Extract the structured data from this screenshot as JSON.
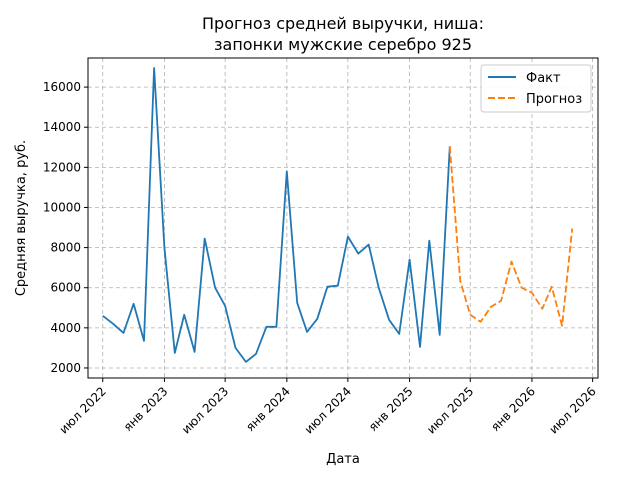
{
  "chart_data": {
    "type": "line",
    "title": "Прогноз средней выручки, ниша:\nзапонки мужские серебро 925",
    "title_lines": [
      "Прогноз средней выручки, ниша:",
      "запонки мужские серебро 925"
    ],
    "xlabel": "Дата",
    "ylabel": "Средняя выручка, руб.",
    "xlim": [
      "2022-05-18",
      "2026-07-17"
    ],
    "ylim": [
      1500,
      17450
    ],
    "grid": true,
    "legend": "top-right",
    "x_ticks": [
      {
        "value": "2022-07-01",
        "label": "июл 2022"
      },
      {
        "value": "2023-01-01",
        "label": "янв 2023"
      },
      {
        "value": "2023-07-01",
        "label": "июл 2023"
      },
      {
        "value": "2024-01-01",
        "label": "янв 2024"
      },
      {
        "value": "2024-07-01",
        "label": "июл 2024"
      },
      {
        "value": "2025-01-01",
        "label": "янв 2025"
      },
      {
        "value": "2025-07-01",
        "label": "июл 2025"
      },
      {
        "value": "2026-01-01",
        "label": "янв 2026"
      },
      {
        "value": "2026-07-01",
        "label": "июл 2026"
      }
    ],
    "y_ticks": [
      {
        "value": 2000,
        "label": "2000"
      },
      {
        "value": 4000,
        "label": "4000"
      },
      {
        "value": 6000,
        "label": "6000"
      },
      {
        "value": 8000,
        "label": "8000"
      },
      {
        "value": 10000,
        "label": "10000"
      },
      {
        "value": 12000,
        "label": "12000"
      },
      {
        "value": 14000,
        "label": "14000"
      },
      {
        "value": 16000,
        "label": "16000"
      }
    ],
    "series": [
      {
        "name": "Факт",
        "color": "#1f77b4",
        "style": "solid",
        "points": [
          {
            "x": "2022-07-01",
            "y": 4600
          },
          {
            "x": "2022-08-01",
            "y": 4200
          },
          {
            "x": "2022-09-01",
            "y": 3750
          },
          {
            "x": "2022-10-01",
            "y": 5200
          },
          {
            "x": "2022-11-01",
            "y": 3350
          },
          {
            "x": "2022-12-01",
            "y": 16950
          },
          {
            "x": "2023-01-01",
            "y": 8000
          },
          {
            "x": "2023-02-01",
            "y": 2750
          },
          {
            "x": "2023-03-01",
            "y": 4650
          },
          {
            "x": "2023-04-01",
            "y": 2800
          },
          {
            "x": "2023-05-01",
            "y": 8450
          },
          {
            "x": "2023-06-01",
            "y": 6000
          },
          {
            "x": "2023-07-01",
            "y": 5100
          },
          {
            "x": "2023-08-01",
            "y": 3000
          },
          {
            "x": "2023-09-01",
            "y": 2300
          },
          {
            "x": "2023-10-01",
            "y": 2700
          },
          {
            "x": "2023-11-01",
            "y": 4050
          },
          {
            "x": "2023-12-01",
            "y": 4050
          },
          {
            "x": "2024-01-01",
            "y": 11800
          },
          {
            "x": "2024-02-01",
            "y": 5250
          },
          {
            "x": "2024-03-01",
            "y": 3800
          },
          {
            "x": "2024-04-01",
            "y": 4450
          },
          {
            "x": "2024-05-01",
            "y": 6050
          },
          {
            "x": "2024-06-01",
            "y": 6100
          },
          {
            "x": "2024-07-01",
            "y": 8550
          },
          {
            "x": "2024-08-01",
            "y": 7700
          },
          {
            "x": "2024-09-01",
            "y": 8150
          },
          {
            "x": "2024-10-01",
            "y": 6000
          },
          {
            "x": "2024-11-01",
            "y": 4400
          },
          {
            "x": "2024-12-01",
            "y": 3700
          },
          {
            "x": "2025-01-01",
            "y": 7400
          },
          {
            "x": "2025-02-01",
            "y": 3050
          },
          {
            "x": "2025-03-01",
            "y": 8350
          },
          {
            "x": "2025-04-01",
            "y": 3650
          },
          {
            "x": "2025-05-01",
            "y": 13050
          }
        ]
      },
      {
        "name": "Прогноз",
        "color": "#ff7f0e",
        "style": "dashed",
        "points": [
          {
            "x": "2025-05-01",
            "y": 13050
          },
          {
            "x": "2025-06-01",
            "y": 6350
          },
          {
            "x": "2025-07-01",
            "y": 4650
          },
          {
            "x": "2025-08-01",
            "y": 4300
          },
          {
            "x": "2025-09-01",
            "y": 5050
          },
          {
            "x": "2025-10-01",
            "y": 5350
          },
          {
            "x": "2025-11-01",
            "y": 7300
          },
          {
            "x": "2025-12-01",
            "y": 6000
          },
          {
            "x": "2026-01-01",
            "y": 5750
          },
          {
            "x": "2026-02-01",
            "y": 4950
          },
          {
            "x": "2026-03-01",
            "y": 6050
          },
          {
            "x": "2026-04-01",
            "y": 4100
          },
          {
            "x": "2026-05-01",
            "y": 8950
          }
        ]
      }
    ]
  }
}
